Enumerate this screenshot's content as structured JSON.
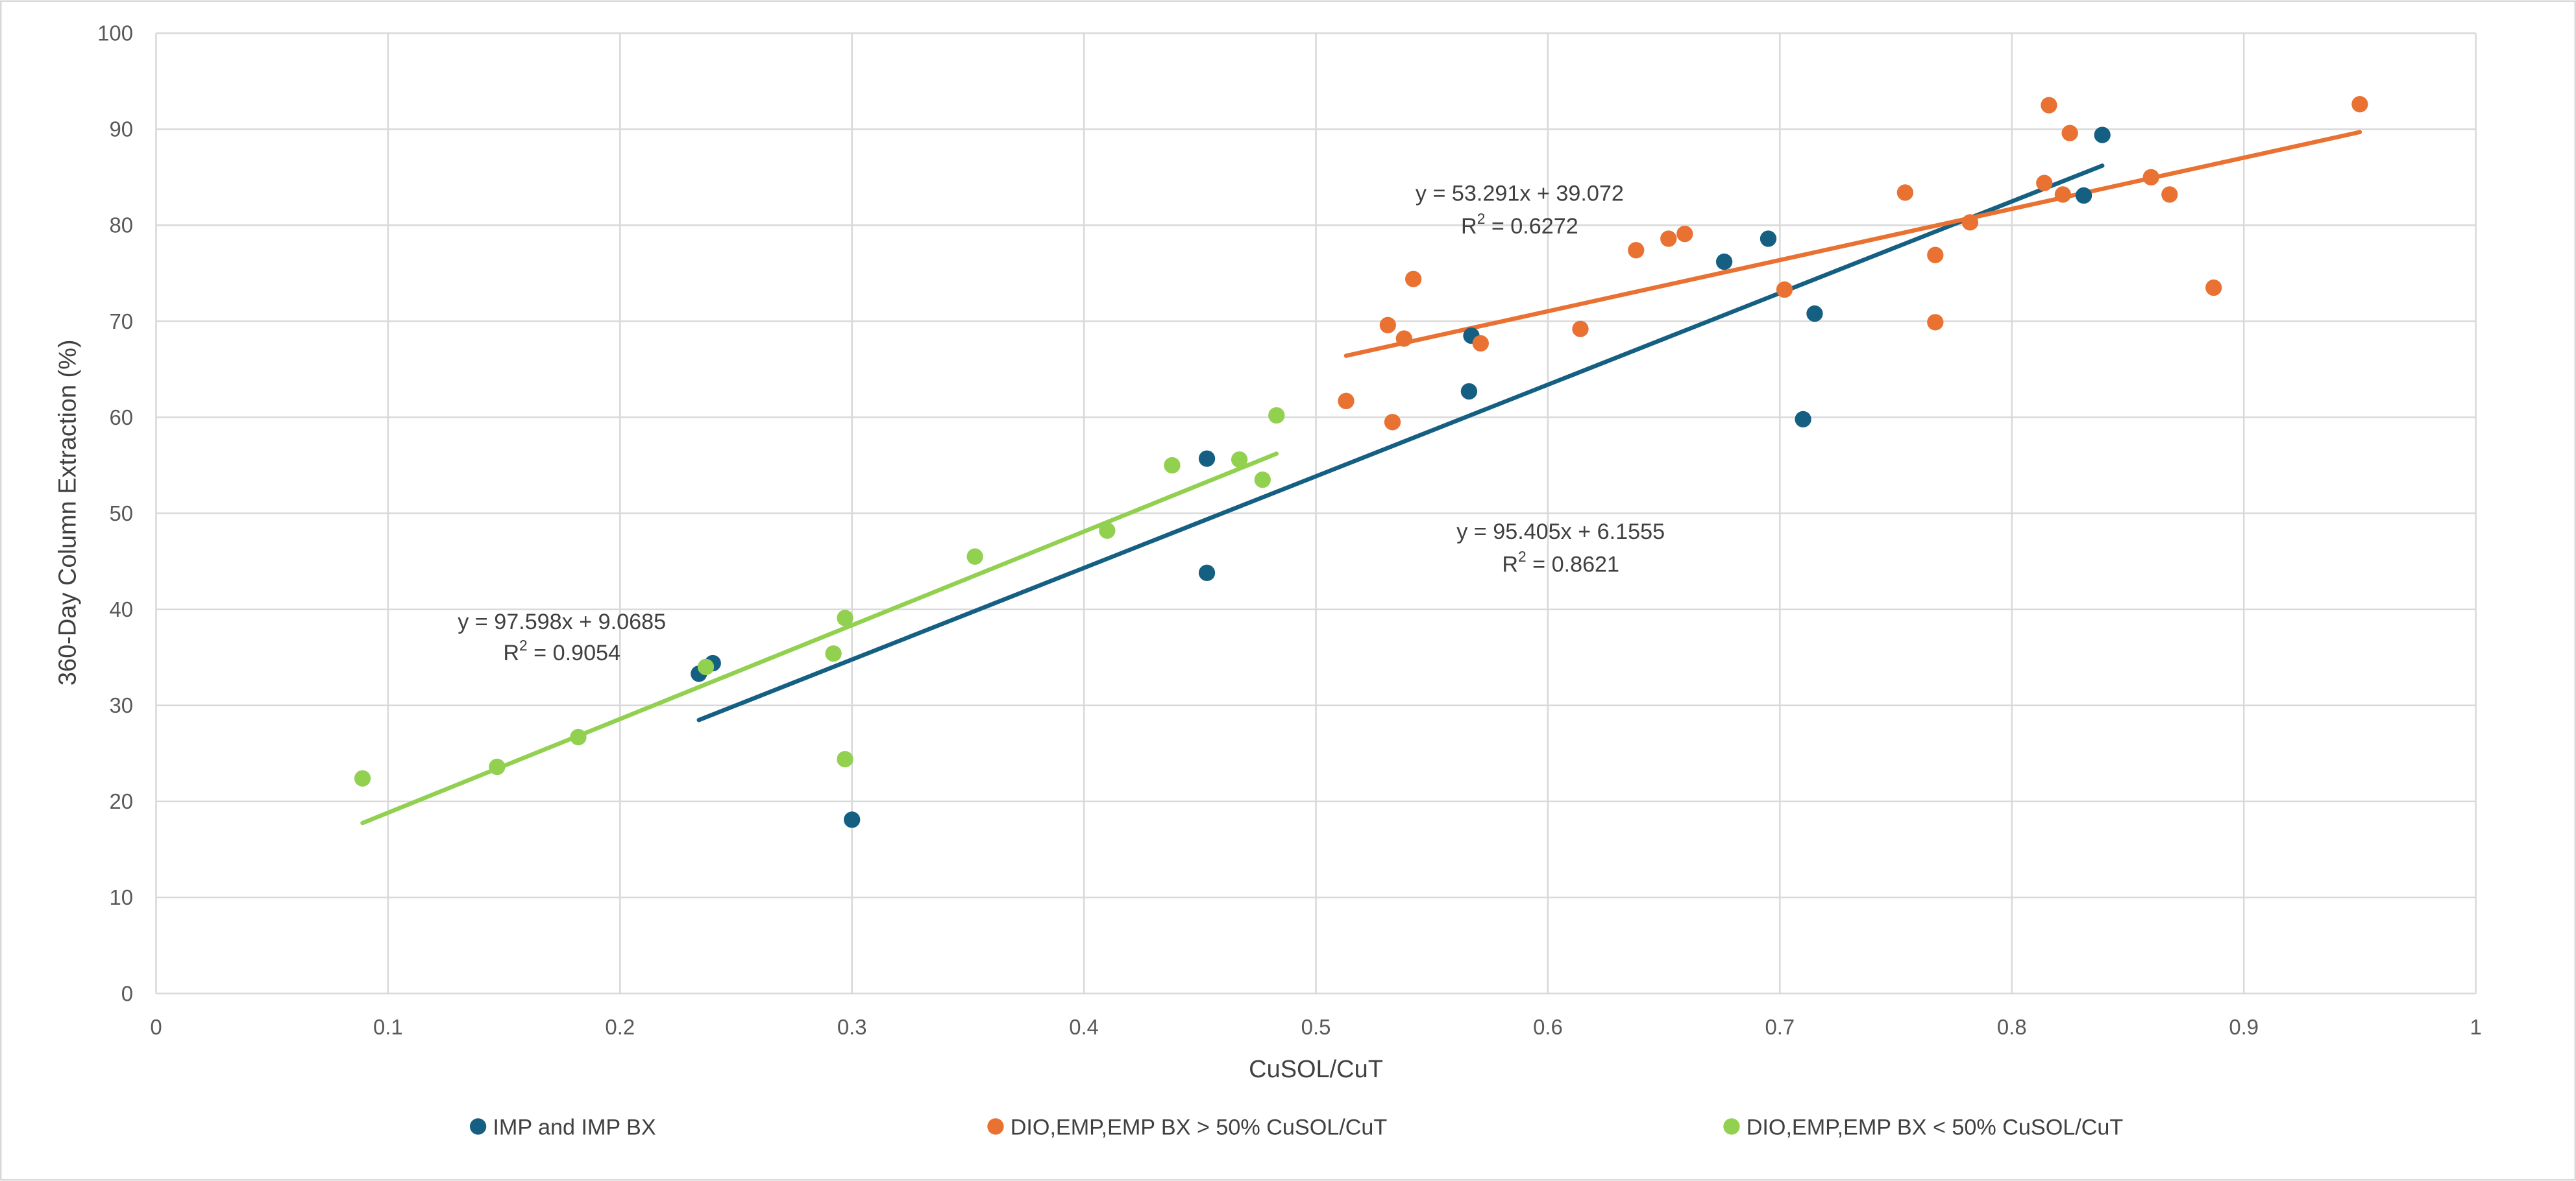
{
  "chart_data": {
    "type": "scatter",
    "title": "",
    "xlabel": "CuSOL/CuT",
    "ylabel": "360-Day Column Extraction (%)",
    "xlim": [
      0,
      1
    ],
    "ylim": [
      0,
      100
    ],
    "xticks": [
      0,
      0.1,
      0.2,
      0.3,
      0.4,
      0.5,
      0.6,
      0.7,
      0.8,
      0.9,
      1
    ],
    "xtick_labels": [
      "0",
      "0.1",
      "0.2",
      "0.3",
      "0.4",
      "0.5",
      "0.6",
      "0.7",
      "0.8",
      "0.9",
      "1"
    ],
    "yticks": [
      0,
      10,
      20,
      30,
      40,
      50,
      60,
      70,
      80,
      90,
      100
    ],
    "ytick_labels": [
      "0",
      "10",
      "20",
      "30",
      "40",
      "50",
      "60",
      "70",
      "80",
      "90",
      "100"
    ],
    "grid": true,
    "legend_position": "bottom",
    "series": [
      {
        "name": "IMP and IMP BX",
        "color": "#156082",
        "points": [
          [
            0.234,
            33.3
          ],
          [
            0.24,
            34.4
          ],
          [
            0.3,
            18.1
          ],
          [
            0.453,
            55.7
          ],
          [
            0.453,
            43.8
          ],
          [
            0.567,
            68.5
          ],
          [
            0.566,
            62.7
          ],
          [
            0.676,
            76.2
          ],
          [
            0.695,
            78.6
          ],
          [
            0.715,
            70.8
          ],
          [
            0.71,
            59.8
          ],
          [
            0.831,
            83.1
          ],
          [
            0.839,
            89.4
          ]
        ],
        "trendline": {
          "slope": 95.405,
          "intercept": 6.1555,
          "x_range": [
            0.234,
            0.839
          ],
          "equation": "y = 95.405x + 6.1555",
          "r2_label": "R",
          "r2_value": " = 0.8621"
        }
      },
      {
        "name": "DIO,EMP,EMP BX > 50% CuSOL/CuT",
        "color": "#E97132",
        "points": [
          [
            0.513,
            61.7
          ],
          [
            0.531,
            69.6
          ],
          [
            0.533,
            59.5
          ],
          [
            0.538,
            68.2
          ],
          [
            0.542,
            74.4
          ],
          [
            0.571,
            67.7
          ],
          [
            0.614,
            69.2
          ],
          [
            0.638,
            77.4
          ],
          [
            0.652,
            78.6
          ],
          [
            0.659,
            79.1
          ],
          [
            0.702,
            73.3
          ],
          [
            0.754,
            83.4
          ],
          [
            0.767,
            76.9
          ],
          [
            0.767,
            69.9
          ],
          [
            0.782,
            80.3
          ],
          [
            0.814,
            84.4
          ],
          [
            0.816,
            92.5
          ],
          [
            0.822,
            83.2
          ],
          [
            0.825,
            89.6
          ],
          [
            0.86,
            85.0
          ],
          [
            0.868,
            83.2
          ],
          [
            0.887,
            73.5
          ],
          [
            0.95,
            92.6
          ]
        ],
        "trendline": {
          "slope": 53.291,
          "intercept": 39.072,
          "x_range": [
            0.513,
            0.95
          ],
          "equation": "y = 53.291x + 39.072",
          "r2_label": "R",
          "r2_value": " = 0.6272"
        }
      },
      {
        "name": "DIO,EMP,EMP BX < 50% CuSOL/CuT",
        "color": "#92D050",
        "points": [
          [
            0.089,
            22.4
          ],
          [
            0.147,
            23.6
          ],
          [
            0.182,
            26.7
          ],
          [
            0.237,
            34.0
          ],
          [
            0.292,
            35.4
          ],
          [
            0.297,
            39.1
          ],
          [
            0.297,
            24.4
          ],
          [
            0.353,
            45.5
          ],
          [
            0.41,
            48.2
          ],
          [
            0.438,
            55.0
          ],
          [
            0.467,
            55.6
          ],
          [
            0.477,
            53.5
          ],
          [
            0.483,
            60.2
          ]
        ],
        "trendline": {
          "slope": 97.598,
          "intercept": 9.0685,
          "x_range": [
            0.089,
            0.483
          ],
          "equation": "y = 97.598x + 9.0685",
          "r2_label": "R",
          "r2_value": " = 0.9054"
        }
      }
    ]
  }
}
